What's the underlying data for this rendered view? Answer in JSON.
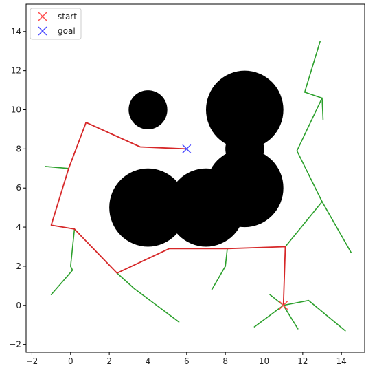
{
  "chart_data": {
    "type": "scatter",
    "title": "",
    "xlabel": "",
    "ylabel": "",
    "xlim": [
      -2.3,
      15.2
    ],
    "ylim": [
      -2.4,
      15.4
    ],
    "xticks": [
      -2,
      0,
      2,
      4,
      6,
      8,
      10,
      12,
      14
    ],
    "yticks": [
      -2,
      0,
      2,
      4,
      6,
      8,
      10,
      12,
      14
    ],
    "grid": false,
    "legend": {
      "placement": "top-left",
      "entries": [
        {
          "label": "start",
          "marker": "x",
          "color": "#ff4d4d"
        },
        {
          "label": "goal",
          "marker": "x",
          "color": "#4d4dff"
        }
      ]
    },
    "start": {
      "x": 11,
      "y": 0
    },
    "goal": {
      "x": 6,
      "y": 8
    },
    "obstacles": [
      {
        "cx": 4,
        "cy": 10,
        "r": 1
      },
      {
        "cx": 9,
        "cy": 10,
        "r": 2
      },
      {
        "cx": 9,
        "cy": 8,
        "r": 1
      },
      {
        "cx": 9,
        "cy": 6,
        "r": 2
      },
      {
        "cx": 4,
        "cy": 5,
        "r": 2
      },
      {
        "cx": 7,
        "cy": 5,
        "r": 2
      }
    ],
    "tree_color": "#2ca02c",
    "path_color": "#d62728",
    "tree_edges": [
      [
        [
          11,
          0
        ],
        [
          12.3,
          0.25
        ]
      ],
      [
        [
          12.3,
          0.25
        ],
        [
          14.2,
          -1.3
        ]
      ],
      [
        [
          11,
          0
        ],
        [
          11.75,
          -1.2
        ]
      ],
      [
        [
          11,
          0
        ],
        [
          10.3,
          0.55
        ]
      ],
      [
        [
          11,
          0
        ],
        [
          9.5,
          -1.1
        ]
      ],
      [
        [
          11.1,
          3.0
        ],
        [
          13.0,
          5.3
        ]
      ],
      [
        [
          13.0,
          5.3
        ],
        [
          14.5,
          2.7
        ]
      ],
      [
        [
          13.0,
          5.3
        ],
        [
          11.7,
          7.9
        ]
      ],
      [
        [
          11.7,
          7.9
        ],
        [
          13.0,
          10.6
        ]
      ],
      [
        [
          13.0,
          10.6
        ],
        [
          13.05,
          9.5
        ]
      ],
      [
        [
          13.0,
          10.6
        ],
        [
          12.1,
          10.9
        ]
      ],
      [
        [
          12.1,
          10.9
        ],
        [
          12.9,
          13.5
        ]
      ],
      [
        [
          8.1,
          2.9
        ],
        [
          8.0,
          2.0
        ]
      ],
      [
        [
          8.0,
          2.0
        ],
        [
          7.3,
          0.8
        ]
      ],
      [
        [
          0.2,
          3.9
        ],
        [
          0.0,
          2.0
        ]
      ],
      [
        [
          0.0,
          2.0
        ],
        [
          0.1,
          1.8
        ]
      ],
      [
        [
          0.1,
          1.8
        ],
        [
          -1.0,
          0.55
        ]
      ],
      [
        [
          2.4,
          1.65
        ],
        [
          3.3,
          0.85
        ]
      ],
      [
        [
          3.3,
          0.85
        ],
        [
          5.6,
          -0.85
        ]
      ],
      [
        [
          -0.1,
          7.0
        ],
        [
          -1.3,
          7.1
        ]
      ]
    ],
    "path": [
      [
        11,
        0
      ],
      [
        11.1,
        3.0
      ],
      [
        8.1,
        2.9
      ],
      [
        5.1,
        2.9
      ],
      [
        2.4,
        1.65
      ],
      [
        0.2,
        3.9
      ],
      [
        -1.0,
        4.1
      ],
      [
        -0.1,
        7.0
      ],
      [
        0.8,
        9.35
      ],
      [
        3.6,
        8.1
      ],
      [
        6,
        8
      ]
    ]
  }
}
